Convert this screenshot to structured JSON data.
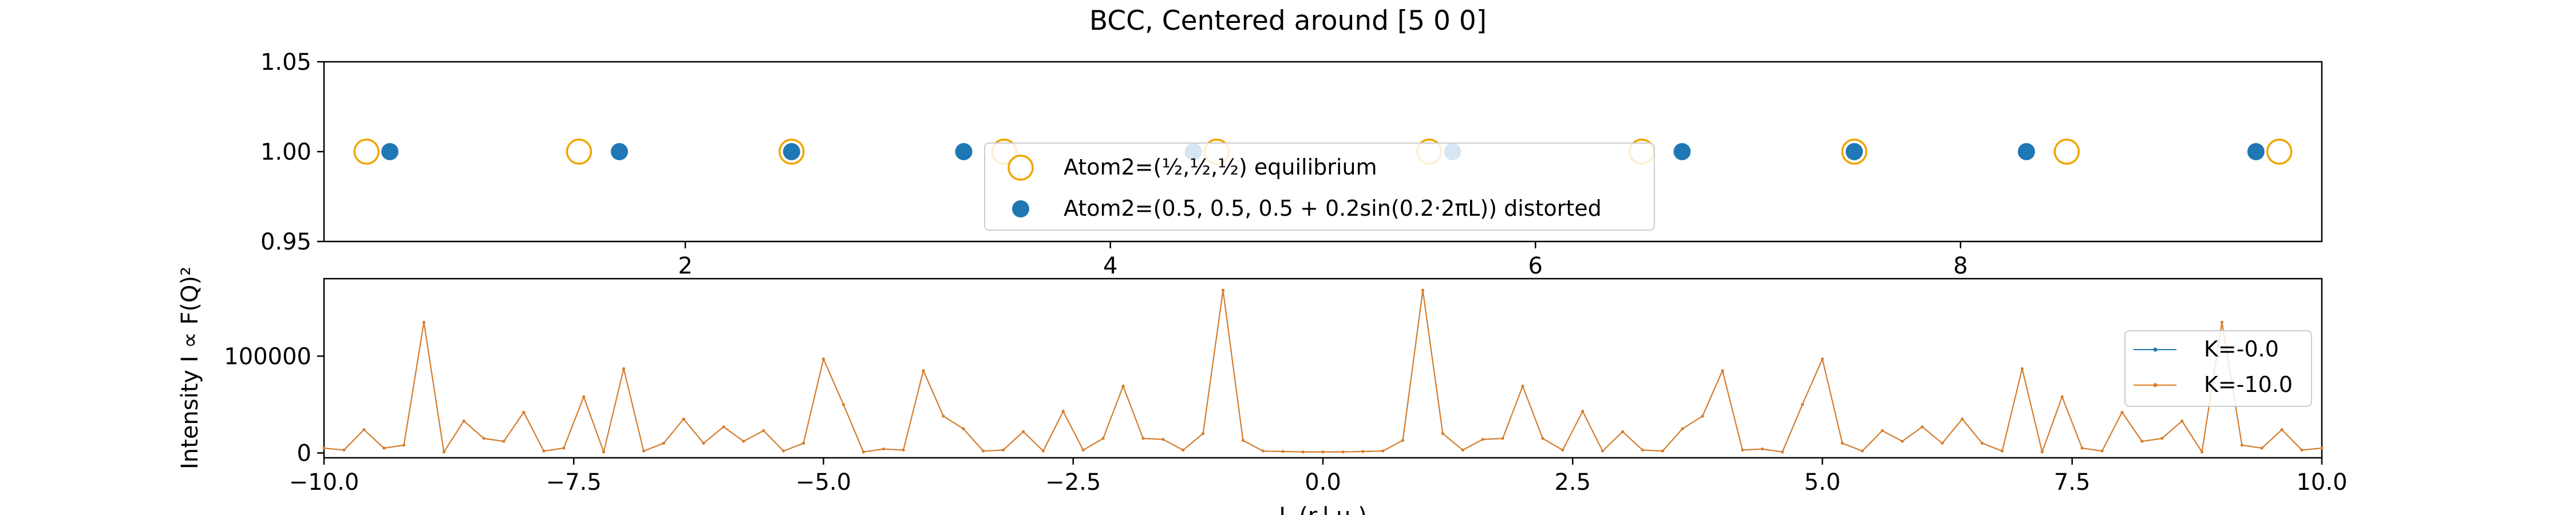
{
  "title": "BCC, Centered around [5 0 0]",
  "colors": {
    "equilibrium": "#f0a500",
    "distorted": "#1f77b4",
    "k0": "#1f77b4",
    "k10": "#e07b20"
  },
  "chart_data": [
    {
      "type": "scatter",
      "xlim": [
        0.3,
        9.7
      ],
      "ylim": [
        0.95,
        1.05
      ],
      "ytick_labels": [
        "1.05",
        "1.00",
        "0.95"
      ],
      "ytick_values": [
        1.05,
        1.0,
        0.95
      ],
      "xtick_labels": [
        "2",
        "4",
        "6",
        "8"
      ],
      "xtick_values": [
        2,
        4,
        6,
        8
      ],
      "legend_position": "lower-center",
      "series": [
        {
          "name": "Atom2=(½,½,½) equilibrium",
          "marker": "hollow-circle",
          "x": [
            0.5,
            1.5,
            2.5,
            3.5,
            4.5,
            5.5,
            6.5,
            7.5,
            8.5,
            9.5
          ],
          "y": [
            1,
            1,
            1,
            1,
            1,
            1,
            1,
            1,
            1,
            1
          ]
        },
        {
          "name": "Atom2=(0.5, 0.5, 0.5 + 0.2sin(0.2·2πL)) distorted",
          "marker": "filled-circle",
          "x": [
            0.61,
            1.69,
            2.5,
            3.31,
            4.39,
            5.61,
            6.69,
            7.5,
            8.31,
            9.39
          ],
          "y": [
            1,
            1,
            1,
            1,
            1,
            1,
            1,
            1,
            1,
            1
          ]
        }
      ]
    },
    {
      "type": "line",
      "xlim": [
        -10,
        10
      ],
      "ylim": [
        -5000,
        180000
      ],
      "ylabel": "Intensity I ∝ F(Q)²",
      "xlabel": "L (r.l.u.)",
      "xtick_labels": [
        "−10.0",
        "−7.5",
        "−5.0",
        "−2.5",
        "0.0",
        "2.5",
        "5.0",
        "7.5",
        "10.0"
      ],
      "xtick_values": [
        -10,
        -7.5,
        -5,
        -2.5,
        0,
        2.5,
        5,
        7.5,
        10
      ],
      "ytick_labels": [
        "0",
        "100000"
      ],
      "ytick_values": [
        0,
        100000
      ],
      "legend_position": "right",
      "series": [
        {
          "name": "K=-0.0",
          "x": [
            -10,
            -9.8,
            -9.6,
            -9.4,
            -9.2,
            -9.0,
            -8.8,
            -8.6,
            -8.4,
            -8.2,
            -8.0,
            -7.8,
            -7.6,
            -7.4,
            -7.2,
            -7.0,
            -6.8,
            -6.6,
            -6.4,
            -6.2,
            -6.0,
            -5.8,
            -5.6,
            -5.4,
            -5.2,
            -5.0,
            -4.8,
            -4.6,
            -4.4,
            -4.2,
            -4.0,
            -3.8,
            -3.6,
            -3.4,
            -3.2,
            -3.0,
            -2.8,
            -2.6,
            -2.4,
            -2.2,
            -2.0,
            -1.8,
            -1.6,
            -1.4,
            -1.2,
            -1.0,
            -0.8,
            -0.6,
            -0.4,
            -0.2,
            0.0,
            0.2,
            0.4,
            0.6,
            0.8,
            1.0,
            1.2,
            1.4,
            1.6,
            1.8,
            2.0,
            2.2,
            2.4,
            2.6,
            2.8,
            3.0,
            3.2,
            3.4,
            3.6,
            3.8,
            4.0,
            4.2,
            4.4,
            4.6,
            4.8,
            5.0,
            5.2,
            5.4,
            5.6,
            5.8,
            6.0,
            6.2,
            6.4,
            6.6,
            6.8,
            7.0,
            7.2,
            7.4,
            7.6,
            7.8,
            8.0,
            8.2,
            8.4,
            8.6,
            8.8,
            9.0,
            9.2,
            9.4,
            9.6,
            9.8,
            10.0
          ],
          "y": [
            5000,
            3000,
            24000,
            5000,
            8000,
            135000,
            1000,
            33000,
            15000,
            12000,
            42000,
            2000,
            5000,
            58000,
            1000,
            87000,
            2000,
            10000,
            35000,
            10000,
            27000,
            12000,
            23000,
            2000,
            10000,
            97000,
            50000,
            1000,
            4000,
            3000,
            85000,
            38000,
            25000,
            2000,
            3000,
            22000,
            2000,
            43000,
            3000,
            15000,
            69000,
            15000,
            14000,
            3000,
            20000,
            168000,
            13000,
            2000,
            1500,
            1000,
            1000,
            1000,
            1500,
            2000,
            13000,
            168000,
            20000,
            3000,
            14000,
            15000,
            69000,
            15000,
            3000,
            43000,
            2000,
            22000,
            3000,
            2000,
            25000,
            38000,
            85000,
            3000,
            4000,
            1000,
            50000,
            97000,
            10000,
            2000,
            23000,
            12000,
            27000,
            10000,
            35000,
            10000,
            2000,
            87000,
            1000,
            58000,
            5000,
            2000,
            42000,
            12000,
            15000,
            33000,
            1000,
            135000,
            8000,
            5000,
            24000,
            3000,
            5000
          ]
        },
        {
          "name": "K=-10.0",
          "x": [
            -10,
            -9.8,
            -9.6,
            -9.4,
            -9.2,
            -9.0,
            -8.8,
            -8.6,
            -8.4,
            -8.2,
            -8.0,
            -7.8,
            -7.6,
            -7.4,
            -7.2,
            -7.0,
            -6.8,
            -6.6,
            -6.4,
            -6.2,
            -6.0,
            -5.8,
            -5.6,
            -5.4,
            -5.2,
            -5.0,
            -4.8,
            -4.6,
            -4.4,
            -4.2,
            -4.0,
            -3.8,
            -3.6,
            -3.4,
            -3.2,
            -3.0,
            -2.8,
            -2.6,
            -2.4,
            -2.2,
            -2.0,
            -1.8,
            -1.6,
            -1.4,
            -1.2,
            -1.0,
            -0.8,
            -0.6,
            -0.4,
            -0.2,
            0.0,
            0.2,
            0.4,
            0.6,
            0.8,
            1.0,
            1.2,
            1.4,
            1.6,
            1.8,
            2.0,
            2.2,
            2.4,
            2.6,
            2.8,
            3.0,
            3.2,
            3.4,
            3.6,
            3.8,
            4.0,
            4.2,
            4.4,
            4.6,
            4.8,
            5.0,
            5.2,
            5.4,
            5.6,
            5.8,
            6.0,
            6.2,
            6.4,
            6.6,
            6.8,
            7.0,
            7.2,
            7.4,
            7.6,
            7.8,
            8.0,
            8.2,
            8.4,
            8.6,
            8.8,
            9.0,
            9.2,
            9.4,
            9.6,
            9.8,
            10.0
          ],
          "y": [
            5000,
            3000,
            24000,
            5000,
            8000,
            135000,
            1000,
            33000,
            15000,
            12000,
            42000,
            2000,
            5000,
            58000,
            1000,
            87000,
            2000,
            10000,
            35000,
            10000,
            27000,
            12000,
            23000,
            2000,
            10000,
            97000,
            50000,
            1000,
            4000,
            3000,
            85000,
            38000,
            25000,
            2000,
            3000,
            22000,
            2000,
            43000,
            3000,
            15000,
            69000,
            15000,
            14000,
            3000,
            20000,
            168000,
            13000,
            2000,
            1500,
            1000,
            1000,
            1000,
            1500,
            2000,
            13000,
            168000,
            20000,
            3000,
            14000,
            15000,
            69000,
            15000,
            3000,
            43000,
            2000,
            22000,
            3000,
            2000,
            25000,
            38000,
            85000,
            3000,
            4000,
            1000,
            50000,
            97000,
            10000,
            2000,
            23000,
            12000,
            27000,
            10000,
            35000,
            10000,
            2000,
            87000,
            1000,
            58000,
            5000,
            2000,
            42000,
            12000,
            15000,
            33000,
            1000,
            135000,
            8000,
            5000,
            24000,
            3000,
            5000
          ]
        }
      ]
    }
  ]
}
